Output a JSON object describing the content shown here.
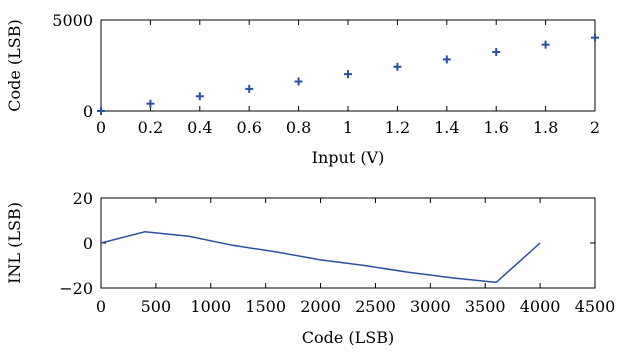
{
  "chart_data": [
    {
      "type": "scatter",
      "marker": "plus",
      "color": "#2d4f9e",
      "xlabel": "Input (V)",
      "ylabel": "Code (LSB)",
      "xlim": [
        0,
        2
      ],
      "ylim": [
        0,
        5000
      ],
      "xticks": [
        0,
        0.2,
        0.4,
        0.6,
        0.8,
        1,
        1.2,
        1.4,
        1.6,
        1.8,
        2
      ],
      "xtick_labels": [
        "0",
        "0.2",
        "0.4",
        "0.6",
        "0.8",
        "1",
        "1.2",
        "1.4",
        "1.6",
        "1.8",
        "2"
      ],
      "yticks": [
        0,
        5000
      ],
      "ytick_labels": [
        "0",
        "5000"
      ],
      "grid": false,
      "series": [
        {
          "x": [
            0,
            0.2,
            0.4,
            0.6,
            0.8,
            1.0,
            1.2,
            1.4,
            1.6,
            1.8,
            2.0
          ],
          "y": [
            0,
            405,
            810,
            1215,
            1620,
            2025,
            2430,
            2835,
            3240,
            3645,
            4030
          ]
        }
      ]
    },
    {
      "type": "line",
      "color": "#2d4f9e",
      "xlabel": "Code (LSB)",
      "ylabel": "INL (LSB)",
      "xlim": [
        0,
        4500
      ],
      "ylim": [
        -20,
        20
      ],
      "xticks": [
        0,
        500,
        1000,
        1500,
        2000,
        2500,
        3000,
        3500,
        4000,
        4500
      ],
      "xtick_labels": [
        "0",
        "500",
        "1000",
        "1500",
        "2000",
        "2500",
        "3000",
        "3500",
        "4000",
        "4500"
      ],
      "yticks": [
        -20,
        0,
        20
      ],
      "ytick_labels": [
        "−20",
        "0",
        "20"
      ],
      "grid": false,
      "series": [
        {
          "x": [
            0,
            400,
            800,
            1200,
            1600,
            2000,
            2400,
            2800,
            3200,
            3600,
            4000
          ],
          "y": [
            0,
            5,
            3,
            -1,
            -4,
            -7.5,
            -10,
            -13,
            -15.5,
            -17.5,
            0
          ]
        }
      ]
    }
  ]
}
